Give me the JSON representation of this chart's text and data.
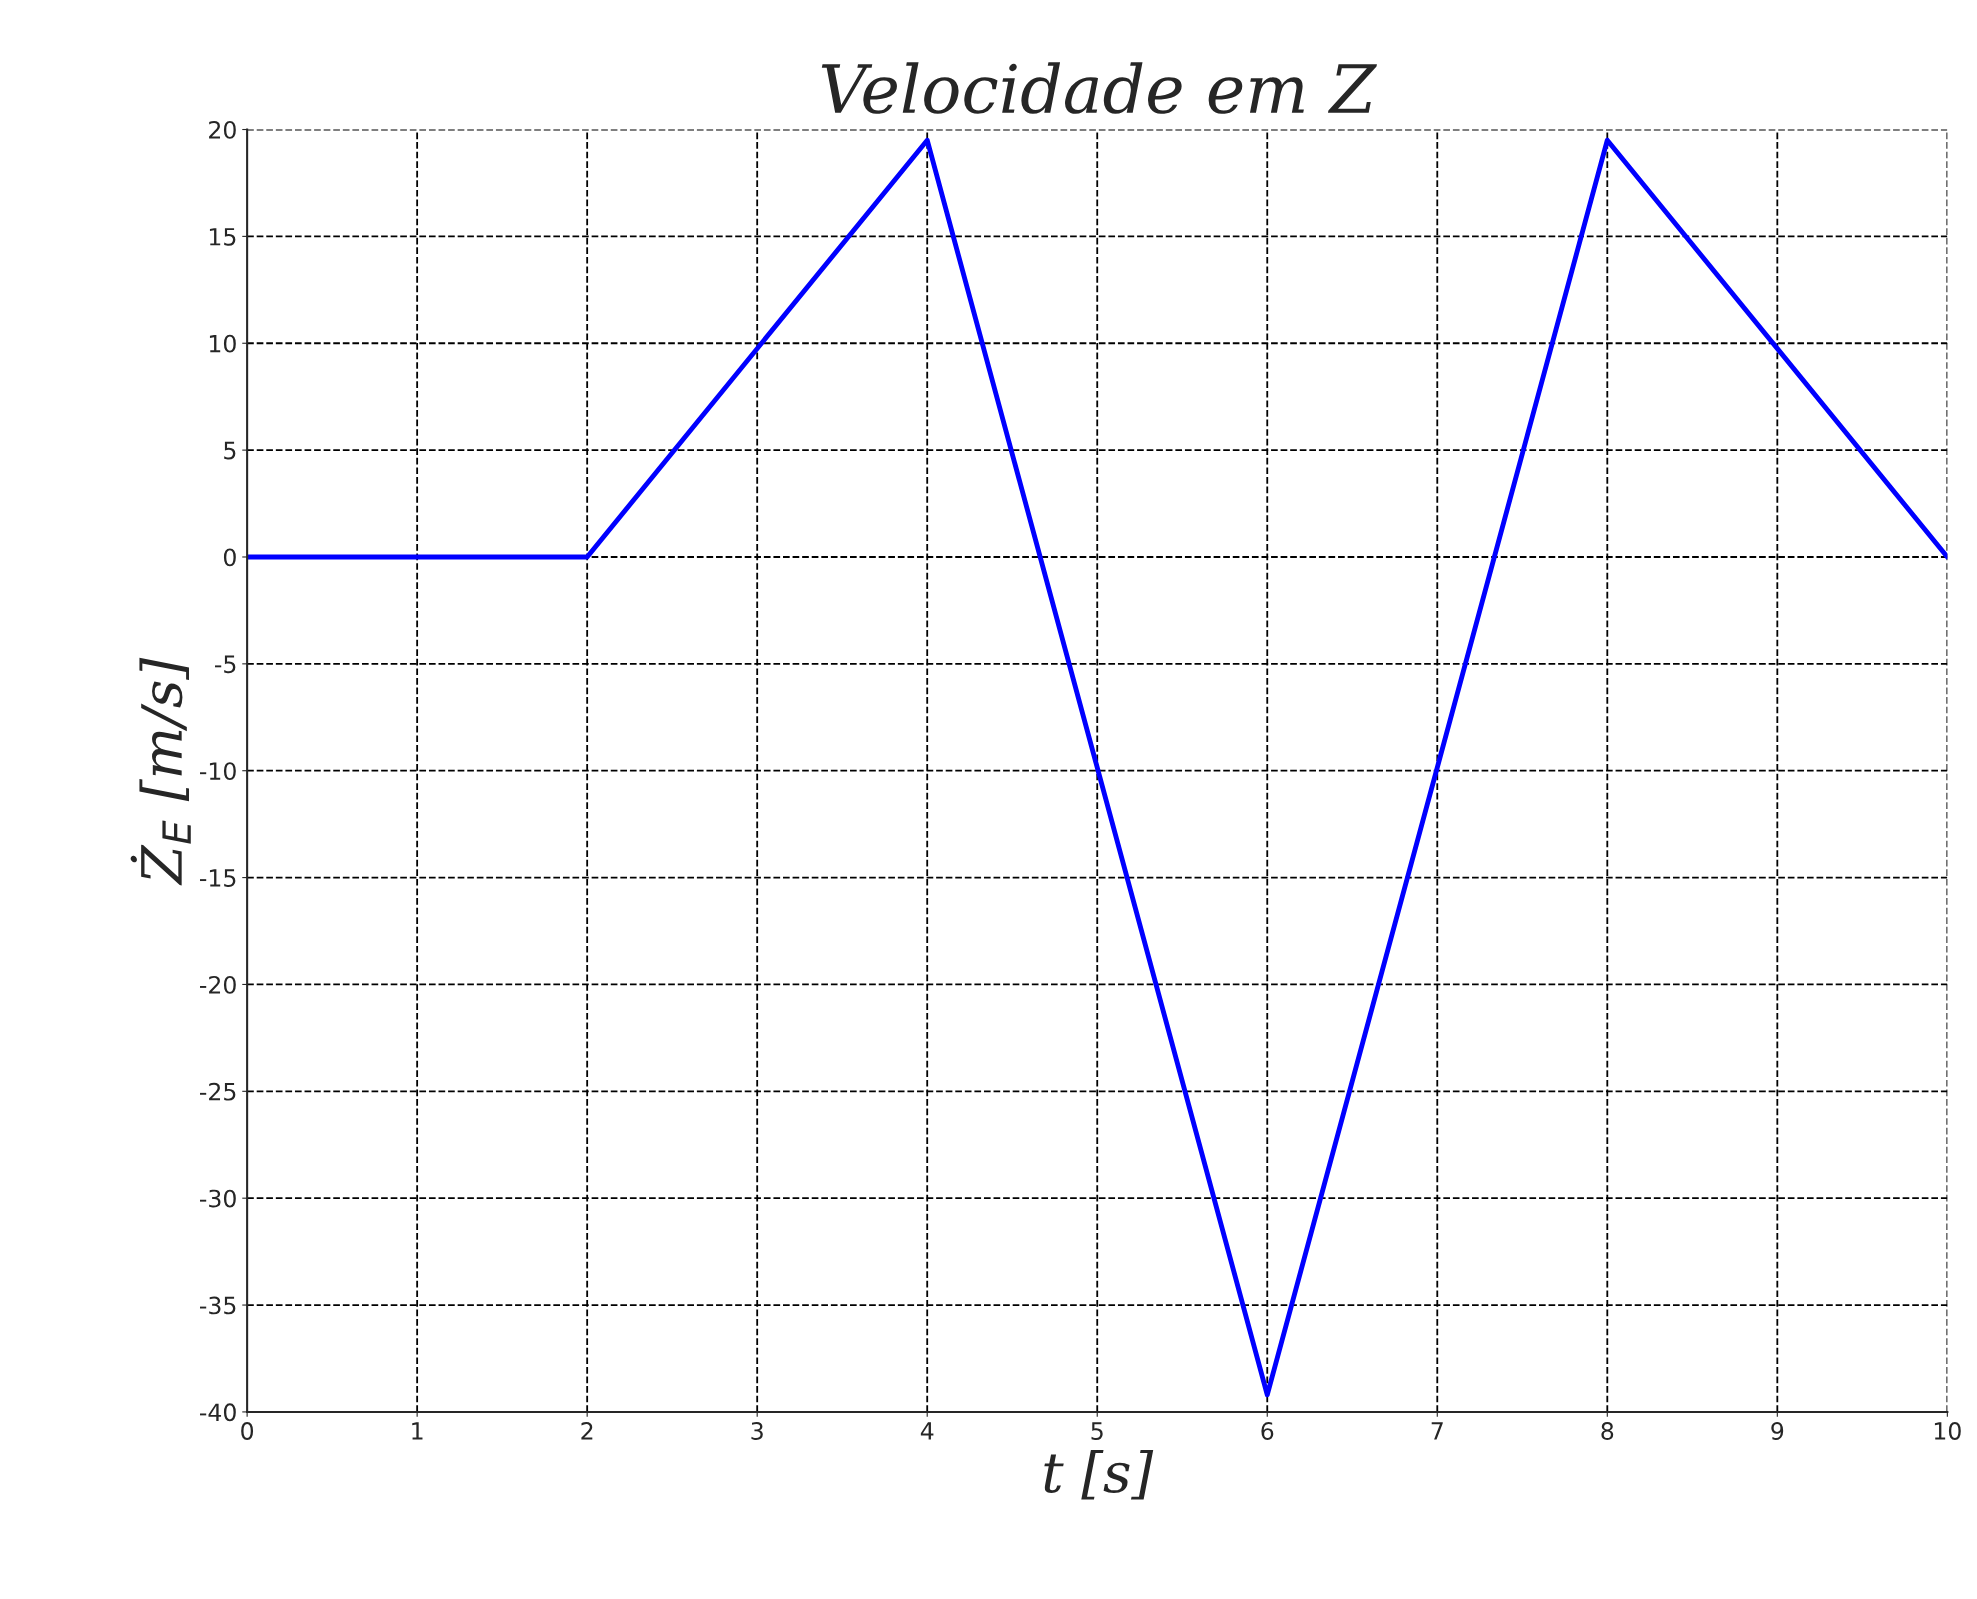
{
  "chart_data": {
    "type": "line",
    "title": "Velocidade em Z",
    "xlabel": "t [s]",
    "ylabel": "Ż$_{E}$ [m/s]",
    "x": [
      0,
      2,
      4,
      6,
      8,
      10
    ],
    "series": [
      {
        "color": "#0000ff",
        "values": [
          0,
          0,
          19.5,
          -39.2,
          19.5,
          0
        ]
      }
    ],
    "xlim": [
      0,
      10
    ],
    "xticks": [
      0,
      1,
      2,
      3,
      4,
      5,
      6,
      7,
      8,
      9,
      10
    ],
    "ylim": [
      -40,
      20
    ],
    "yticks": [
      -40,
      -35,
      -30,
      -25,
      -20,
      -15,
      -10,
      -5,
      0,
      5,
      10,
      15,
      20
    ],
    "grid": true,
    "marker": "none",
    "line_style": "solid"
  }
}
